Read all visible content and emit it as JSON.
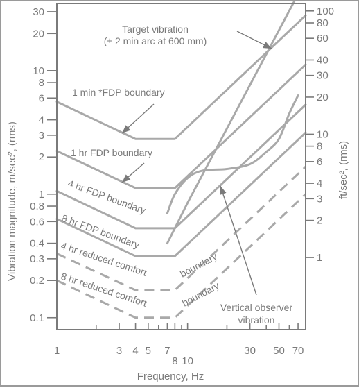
{
  "chart_data": {
    "type": "line",
    "xlabel": "Frequency, Hz",
    "ylabel": "Vibration magnitude, m/sec², (rms)",
    "y2label": "ft/sec², (rms)",
    "xscale": "log",
    "yscale": "log",
    "xlim": [
      1,
      80
    ],
    "ylim": [
      0.08,
      35
    ],
    "y2lim": [
      0.26,
      115
    ],
    "grid": false,
    "x_ticks": [
      1,
      2,
      3,
      4,
      5,
      6,
      7,
      8,
      9,
      10,
      20,
      30,
      40,
      50,
      60,
      70
    ],
    "x_tick_labels": [
      {
        "value": 1,
        "text": "1",
        "row": 0
      },
      {
        "value": 3,
        "text": "3",
        "row": 0
      },
      {
        "value": 4,
        "text": "4",
        "row": 0
      },
      {
        "value": 5,
        "text": "5",
        "row": 0
      },
      {
        "value": 7,
        "text": "7",
        "row": 0
      },
      {
        "value": 8,
        "text": "8",
        "row": 1
      },
      {
        "value": 10,
        "text": "10",
        "row": 1
      },
      {
        "value": 30,
        "text": "30",
        "row": 0
      },
      {
        "value": 50,
        "text": "50",
        "row": 0
      },
      {
        "value": 70,
        "text": "70",
        "row": 0
      }
    ],
    "y_ticks": [
      {
        "value": 30,
        "text": "30"
      },
      {
        "value": 20,
        "text": "20"
      },
      {
        "value": 10,
        "text": "10"
      },
      {
        "value": 8,
        "text": "8"
      },
      {
        "value": 6,
        "text": "6"
      },
      {
        "value": 4,
        "text": "4"
      },
      {
        "value": 3,
        "text": "3"
      },
      {
        "value": 2,
        "text": "2"
      },
      {
        "value": 1,
        "text": "1"
      },
      {
        "value": 0.8,
        "text": "0.8"
      },
      {
        "value": 0.6,
        "text": "0.6"
      },
      {
        "value": 0.4,
        "text": "0.4"
      },
      {
        "value": 0.3,
        "text": "0.3"
      },
      {
        "value": 0.2,
        "text": "0.2"
      },
      {
        "value": 0.1,
        "text": "0.1"
      }
    ],
    "y2_ticks": [
      {
        "value": 100,
        "text": "100"
      },
      {
        "value": 80,
        "text": "80"
      },
      {
        "value": 60,
        "text": "60"
      },
      {
        "value": 40,
        "text": "40"
      },
      {
        "value": 30,
        "text": "30"
      },
      {
        "value": 20,
        "text": "20"
      },
      {
        "value": 10,
        "text": "10"
      },
      {
        "value": 8,
        "text": "8"
      },
      {
        "value": 6,
        "text": "6"
      },
      {
        "value": 4,
        "text": "4"
      },
      {
        "value": 3,
        "text": "3"
      },
      {
        "value": 2,
        "text": "2"
      },
      {
        "value": 1,
        "text": "1"
      }
    ],
    "series": [
      {
        "name": "1 min *FDP boundary",
        "style": "solid",
        "points": [
          [
            1,
            5.6
          ],
          [
            4,
            2.8
          ],
          [
            8,
            2.8
          ],
          [
            80,
            28
          ]
        ]
      },
      {
        "name": "1 hr FDP boundary",
        "style": "solid",
        "points": [
          [
            1,
            2.24
          ],
          [
            4,
            1.12
          ],
          [
            8,
            1.12
          ],
          [
            80,
            11.2
          ]
        ]
      },
      {
        "name": "4 hr FDP boundary",
        "style": "solid",
        "points": [
          [
            1,
            1.06
          ],
          [
            4,
            0.53
          ],
          [
            8,
            0.53
          ],
          [
            80,
            5.3
          ]
        ]
      },
      {
        "name": "8 hr FDP boundary",
        "style": "solid",
        "points": [
          [
            1,
            0.63
          ],
          [
            4,
            0.315
          ],
          [
            8,
            0.315
          ],
          [
            80,
            3.15
          ]
        ]
      },
      {
        "name": "4 hr reduced comfort boundary",
        "style": "dashed",
        "points": [
          [
            1,
            0.33
          ],
          [
            4,
            0.167
          ],
          [
            8,
            0.167
          ],
          [
            80,
            1.67
          ]
        ]
      },
      {
        "name": "8 hr reduced comfort boundary",
        "style": "dashed",
        "points": [
          [
            1,
            0.2
          ],
          [
            4,
            0.1
          ],
          [
            8,
            0.1
          ],
          [
            80,
            1.0
          ]
        ]
      },
      {
        "name": "Target vibration",
        "style": "solid",
        "points": [
          [
            7,
            0.4
          ],
          [
            10,
            0.85
          ],
          [
            20,
            3.4
          ],
          [
            40,
            13.6
          ],
          [
            60,
            30.6
          ],
          [
            70,
            41.6
          ]
        ]
      },
      {
        "name": "Vertical observer vibration",
        "style": "solid",
        "points": [
          [
            7,
            0.7
          ],
          [
            8,
            1.0
          ],
          [
            10,
            1.35
          ],
          [
            13,
            1.55
          ],
          [
            20,
            1.6
          ],
          [
            30,
            1.75
          ],
          [
            40,
            2.2
          ],
          [
            50,
            2.8
          ],
          [
            60,
            4.5
          ],
          [
            70,
            6.3
          ]
        ]
      }
    ],
    "annotations": [
      {
        "id": "target",
        "lines": [
          "Target vibration",
          "(± 2 min arc at 600 mm)"
        ]
      },
      {
        "id": "fdp1min",
        "lines": [
          "1 min *FDP boundary"
        ]
      },
      {
        "id": "fdp1hr",
        "lines": [
          "1 hr FDP boundary"
        ]
      },
      {
        "id": "fdp4hr",
        "lines": [
          "4 hr FDP boundary"
        ]
      },
      {
        "id": "fdp8hr",
        "lines": [
          "8 hr FDP boundary"
        ]
      },
      {
        "id": "rc4hr",
        "lines": [
          "4 hr reduced comfort",
          "boundary"
        ]
      },
      {
        "id": "rc8hr",
        "lines": [
          "8 hr reduced comfort",
          "boundary"
        ]
      },
      {
        "id": "observer",
        "lines": [
          "Vertical observer",
          "vibration"
        ]
      }
    ]
  }
}
